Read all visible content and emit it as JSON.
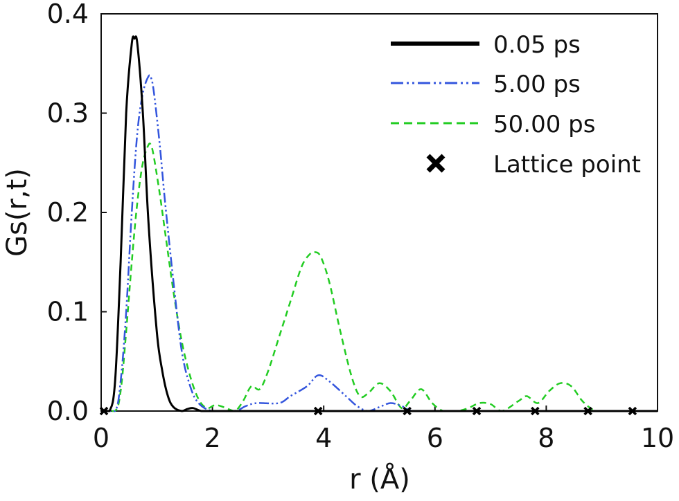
{
  "chart_data": {
    "type": "line",
    "xlabel": "r (Å)",
    "ylabel": "Gs(r,t)",
    "xlim": [
      0,
      10
    ],
    "ylim": [
      0,
      0.4
    ],
    "xticks": [
      "0",
      "2",
      "4",
      "6",
      "8",
      "10"
    ],
    "yticks": [
      "0.0",
      "0.1",
      "0.2",
      "0.3",
      "0.4"
    ],
    "grid": false,
    "legend_position": "top-right",
    "series": [
      {
        "name": "0.05 ps",
        "color": "#000000",
        "dash": "solid",
        "x": [
          0,
          0.15,
          0.25,
          0.35,
          0.45,
          0.55,
          0.6,
          0.65,
          0.75,
          0.85,
          1.0,
          1.1,
          1.2,
          1.3,
          1.45,
          1.55,
          1.65,
          1.8,
          2.0,
          2.5,
          3.0,
          4.0,
          5.0,
          6.0,
          7.0,
          8.0,
          9.0,
          10.0
        ],
        "y": [
          0,
          0.0,
          0.03,
          0.15,
          0.3,
          0.37,
          0.375,
          0.37,
          0.3,
          0.19,
          0.08,
          0.04,
          0.015,
          0.004,
          0.0,
          0.002,
          0.003,
          0.0,
          0,
          0,
          0,
          0,
          0,
          0,
          0,
          0,
          0,
          0
        ]
      },
      {
        "name": "5.00 ps",
        "color": "#3355dd",
        "dash": "dashdotdot",
        "x": [
          0,
          0.25,
          0.35,
          0.45,
          0.55,
          0.65,
          0.75,
          0.85,
          0.9,
          0.95,
          1.05,
          1.15,
          1.3,
          1.45,
          1.6,
          1.75,
          2.0,
          2.4,
          2.6,
          2.8,
          3.2,
          3.4,
          3.7,
          3.9,
          4.1,
          4.4,
          4.6,
          4.8,
          5.0,
          5.2,
          5.4,
          5.6,
          6.0,
          7.0,
          8.0,
          9.0,
          10.0
        ],
        "y": [
          0,
          0.0,
          0.03,
          0.1,
          0.2,
          0.28,
          0.32,
          0.337,
          0.335,
          0.32,
          0.27,
          0.21,
          0.13,
          0.06,
          0.025,
          0.008,
          0.0,
          0.0,
          0.005,
          0.008,
          0.008,
          0.015,
          0.025,
          0.036,
          0.03,
          0.015,
          0.005,
          0.0,
          0.004,
          0.008,
          0.005,
          0.0,
          0,
          0,
          0,
          0,
          0
        ]
      },
      {
        "name": "50.00 ps",
        "color": "#22cc22",
        "dash": "dashed",
        "x": [
          0,
          0.25,
          0.35,
          0.45,
          0.55,
          0.65,
          0.75,
          0.85,
          0.9,
          0.95,
          1.05,
          1.15,
          1.3,
          1.45,
          1.6,
          1.75,
          1.9,
          2.05,
          2.2,
          2.4,
          2.55,
          2.7,
          2.85,
          3.0,
          3.2,
          3.4,
          3.6,
          3.75,
          3.85,
          3.95,
          4.1,
          4.3,
          4.5,
          4.65,
          4.8,
          5.0,
          5.2,
          5.4,
          5.55,
          5.75,
          5.95,
          6.15,
          6.4,
          6.6,
          6.8,
          7.0,
          7.2,
          7.5,
          7.65,
          7.85,
          8.05,
          8.25,
          8.45,
          8.65,
          8.85,
          9.0,
          9.5,
          10.0
        ],
        "y": [
          0,
          0.0,
          0.02,
          0.08,
          0.15,
          0.21,
          0.25,
          0.268,
          0.267,
          0.255,
          0.22,
          0.18,
          0.12,
          0.07,
          0.035,
          0.012,
          0.003,
          0.006,
          0.004,
          0.0,
          0.01,
          0.025,
          0.022,
          0.04,
          0.075,
          0.11,
          0.145,
          0.158,
          0.16,
          0.155,
          0.13,
          0.08,
          0.035,
          0.015,
          0.018,
          0.028,
          0.02,
          0.003,
          0.01,
          0.022,
          0.008,
          0.0,
          0.0,
          0.003,
          0.008,
          0.007,
          0.0,
          0.01,
          0.015,
          0.008,
          0.02,
          0.028,
          0.025,
          0.01,
          0.001,
          0.0,
          0,
          0
        ]
      },
      {
        "name": "Lattice point",
        "color": "#000000",
        "marker": "x",
        "x": [
          0.05,
          3.9,
          5.5,
          6.75,
          7.8,
          8.75,
          9.55
        ],
        "y": [
          0,
          0,
          0,
          0,
          0,
          0,
          0
        ]
      }
    ]
  }
}
